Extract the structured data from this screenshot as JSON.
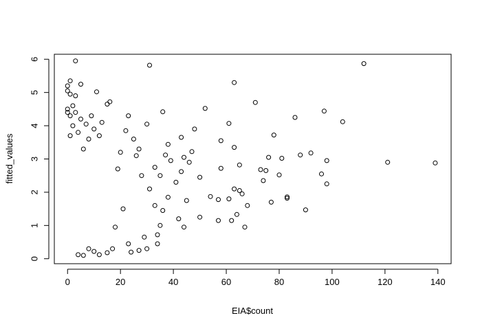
{
  "chart_data": {
    "type": "scatter",
    "title": "",
    "xlabel": "EIA$count",
    "ylabel": "fitted_values",
    "xlim": [
      -5,
      145
    ],
    "ylim": [
      -0.15,
      6.15
    ],
    "x_ticks": [
      "0",
      "20",
      "40",
      "60",
      "80",
      "100",
      "120",
      "140"
    ],
    "y_ticks": [
      "0",
      "1",
      "2",
      "3",
      "4",
      "5",
      "6"
    ],
    "marker": "open-circle",
    "grid": false,
    "legend": "none",
    "points": [
      [
        3,
        5.95
      ],
      [
        112,
        5.87
      ],
      [
        31,
        5.82
      ],
      [
        63,
        5.3
      ],
      [
        5,
        5.25
      ],
      [
        1,
        5.35
      ],
      [
        0,
        5.2
      ],
      [
        11,
        5.02
      ],
      [
        0,
        5.05
      ],
      [
        1,
        4.95
      ],
      [
        3,
        4.9
      ],
      [
        16,
        4.72
      ],
      [
        15,
        4.65
      ],
      [
        71,
        4.7
      ],
      [
        52,
        4.52
      ],
      [
        97,
        4.44
      ],
      [
        36,
        4.42
      ],
      [
        23,
        4.3
      ],
      [
        86,
        4.25
      ],
      [
        104,
        4.12
      ],
      [
        61,
        4.07
      ],
      [
        58,
        3.55
      ],
      [
        78,
        3.72
      ],
      [
        38,
        3.44
      ],
      [
        63,
        3.35
      ],
      [
        48,
        3.9
      ],
      [
        30,
        4.05
      ],
      [
        43,
        3.65
      ],
      [
        121,
        2.9
      ],
      [
        139,
        2.88
      ],
      [
        98,
        2.95
      ],
      [
        92,
        3.18
      ],
      [
        88,
        3.12
      ],
      [
        81,
        3.02
      ],
      [
        76,
        3.05
      ],
      [
        65,
        2.82
      ],
      [
        73,
        2.68
      ],
      [
        75,
        2.65
      ],
      [
        80,
        2.52
      ],
      [
        96,
        2.55
      ],
      [
        98,
        2.25
      ],
      [
        74,
        2.35
      ],
      [
        63,
        2.1
      ],
      [
        65,
        2.05
      ],
      [
        58,
        2.72
      ],
      [
        66,
        1.95
      ],
      [
        83,
        1.82
      ],
      [
        83,
        1.86
      ],
      [
        77,
        1.7
      ],
      [
        68,
        1.6
      ],
      [
        90,
        1.47
      ],
      [
        61,
        1.8
      ],
      [
        57,
        1.78
      ],
      [
        54,
        1.87
      ],
      [
        64,
        1.33
      ],
      [
        62,
        1.15
      ],
      [
        57,
        1.15
      ],
      [
        67,
        0.95
      ],
      [
        50,
        1.25
      ],
      [
        44,
        0.95
      ],
      [
        42,
        1.2
      ],
      [
        45,
        1.75
      ],
      [
        41,
        2.3
      ],
      [
        46,
        2.9
      ],
      [
        43,
        2.62
      ],
      [
        50,
        2.45
      ],
      [
        44,
        3.05
      ],
      [
        47,
        3.22
      ],
      [
        39,
        2.95
      ],
      [
        37,
        3.12
      ],
      [
        35,
        2.5
      ],
      [
        33,
        2.75
      ],
      [
        38,
        1.85
      ],
      [
        36,
        1.45
      ],
      [
        35,
        1.0
      ],
      [
        34,
        0.45
      ],
      [
        30,
        0.3
      ],
      [
        27,
        0.25
      ],
      [
        24,
        0.2
      ],
      [
        23,
        0.45
      ],
      [
        29,
        0.65
      ],
      [
        34,
        0.72
      ],
      [
        33,
        1.6
      ],
      [
        31,
        2.1
      ],
      [
        28,
        2.5
      ],
      [
        26,
        3.1
      ],
      [
        25,
        3.6
      ],
      [
        27,
        3.3
      ],
      [
        22,
        3.85
      ],
      [
        20,
        3.2
      ],
      [
        19,
        2.7
      ],
      [
        21,
        1.5
      ],
      [
        18,
        0.95
      ],
      [
        17,
        0.3
      ],
      [
        15,
        0.18
      ],
      [
        12,
        0.12
      ],
      [
        10,
        0.22
      ],
      [
        8,
        0.3
      ],
      [
        6,
        0.1
      ],
      [
        4,
        0.12
      ],
      [
        13,
        4.1
      ],
      [
        12,
        3.7
      ],
      [
        10,
        3.9
      ],
      [
        9,
        4.3
      ],
      [
        8,
        3.6
      ],
      [
        7,
        4.05
      ],
      [
        6,
        3.3
      ],
      [
        5,
        4.2
      ],
      [
        4,
        3.8
      ],
      [
        3,
        4.4
      ],
      [
        2,
        4.6
      ],
      [
        2,
        4.0
      ],
      [
        1,
        4.3
      ],
      [
        1,
        3.7
      ],
      [
        0,
        4.5
      ],
      [
        0,
        4.4
      ]
    ]
  }
}
